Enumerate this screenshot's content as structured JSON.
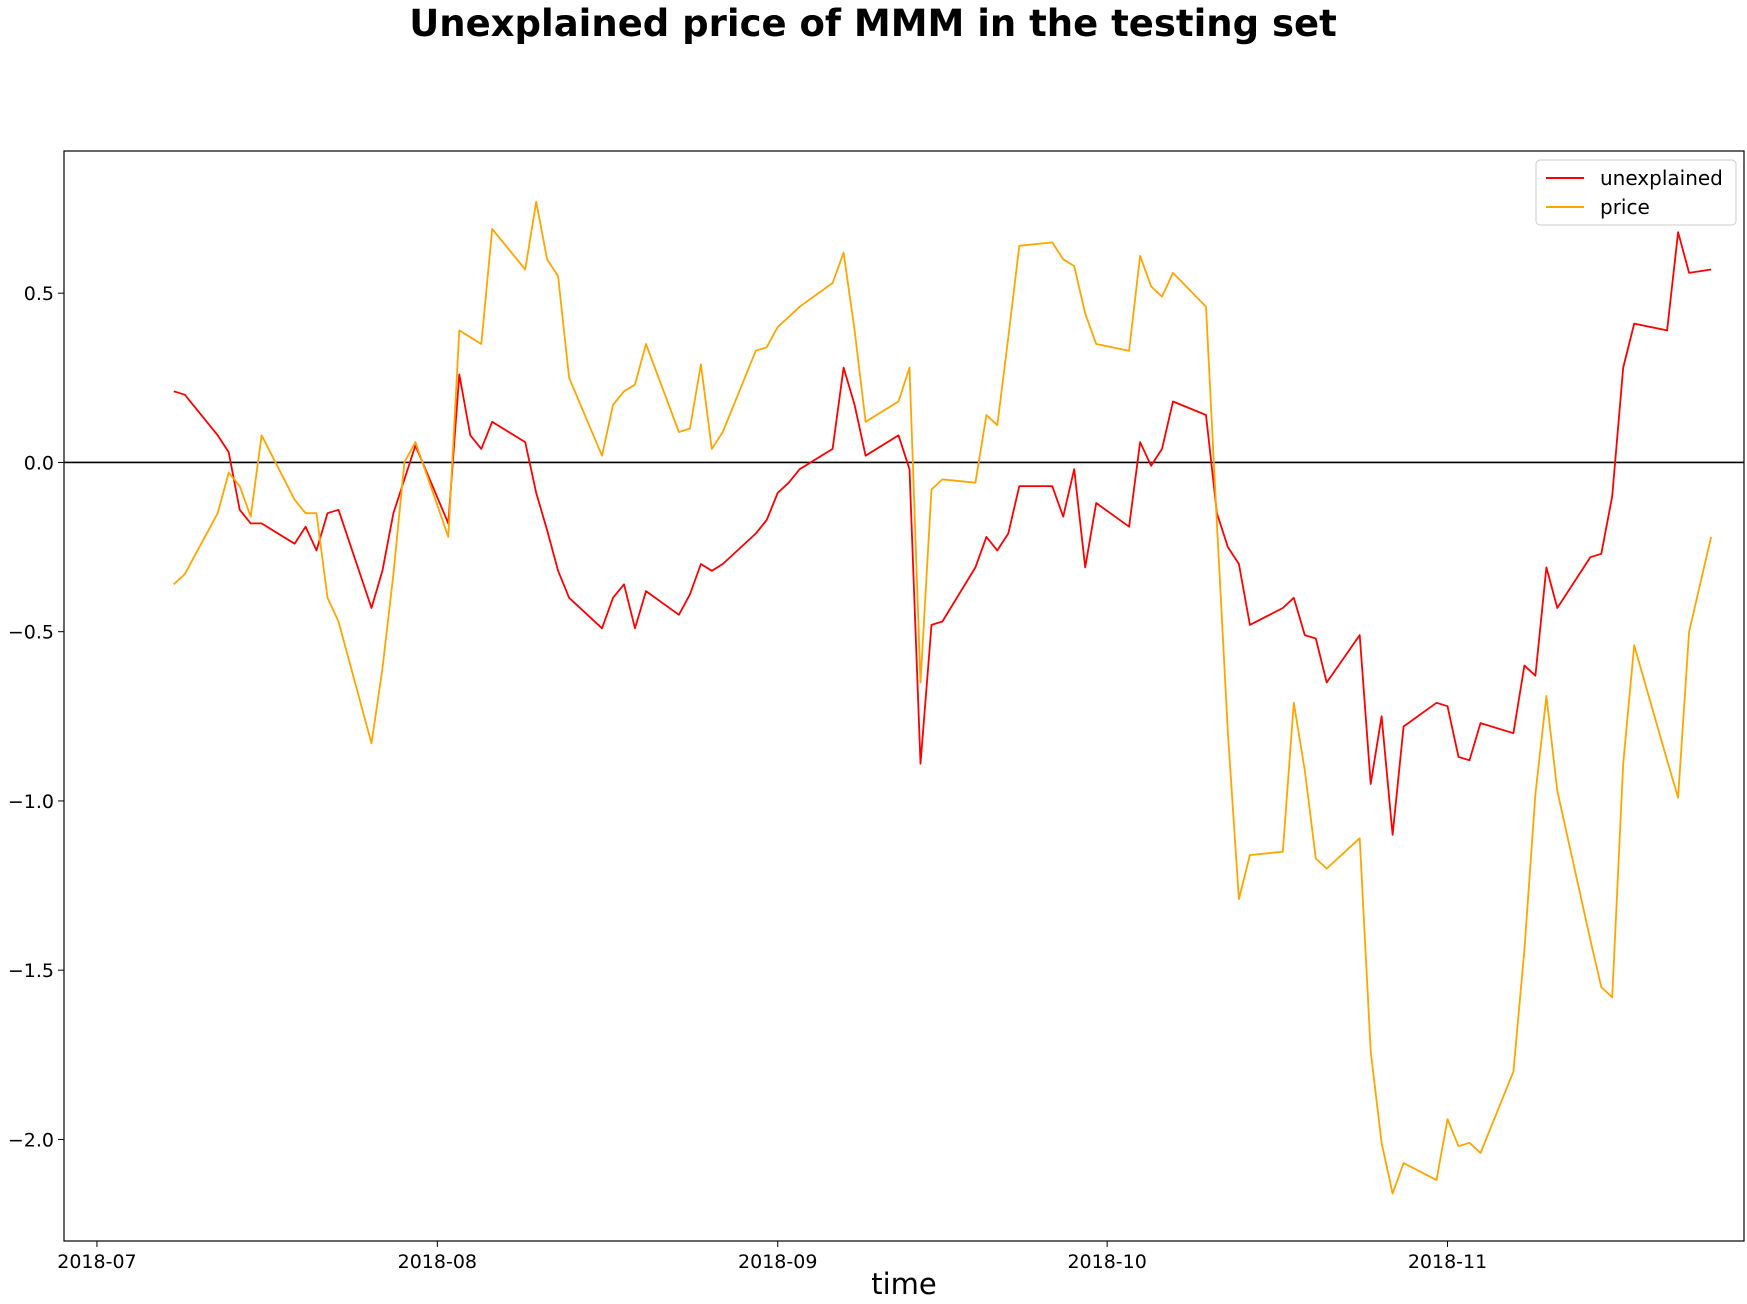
{
  "chart_data": {
    "type": "line",
    "title": "Unexplained price of MMM in the testing set",
    "xlabel": "time",
    "ylabel": "",
    "xlim": [
      "2018-06-28",
      "2018-11-28"
    ],
    "ylim": [
      -2.3,
      0.92
    ],
    "legend_position": "top-right",
    "grid": false,
    "zero_line": true,
    "x_ticks": [
      "2018-07-01",
      "2018-08-01",
      "2018-09-01",
      "2018-10-01",
      "2018-11-01"
    ],
    "x_tick_labels": [
      "2018-07",
      "2018-08",
      "2018-09",
      "2018-10",
      "2018-11"
    ],
    "y_ticks": [
      0.5,
      0.0,
      -0.5,
      -1.0,
      -1.5,
      -2.0
    ],
    "y_tick_labels": [
      "0.5",
      "0.0",
      "−0.5",
      "−1.0",
      "−1.5",
      "−2.0"
    ],
    "series": [
      {
        "name": "unexplained",
        "color": "#ff0000",
        "points": [
          [
            "2018-07-08",
            0.21
          ],
          [
            "2018-07-09",
            0.2
          ],
          [
            "2018-07-12",
            0.08
          ],
          [
            "2018-07-13",
            0.03
          ],
          [
            "2018-07-14",
            -0.14
          ],
          [
            "2018-07-15",
            -0.18
          ],
          [
            "2018-07-16",
            -0.18
          ],
          [
            "2018-07-19",
            -0.24
          ],
          [
            "2018-07-20",
            -0.19
          ],
          [
            "2018-07-21",
            -0.26
          ],
          [
            "2018-07-22",
            -0.15
          ],
          [
            "2018-07-23",
            -0.14
          ],
          [
            "2018-07-26",
            -0.43
          ],
          [
            "2018-07-27",
            -0.32
          ],
          [
            "2018-07-28",
            -0.15
          ],
          [
            "2018-07-29",
            -0.05
          ],
          [
            "2018-07-30",
            0.05
          ],
          [
            "2018-08-02",
            -0.18
          ],
          [
            "2018-08-03",
            0.26
          ],
          [
            "2018-08-04",
            0.08
          ],
          [
            "2018-08-05",
            0.04
          ],
          [
            "2018-08-06",
            0.12
          ],
          [
            "2018-08-09",
            0.06
          ],
          [
            "2018-08-10",
            -0.09
          ],
          [
            "2018-08-11",
            -0.2
          ],
          [
            "2018-08-12",
            -0.32
          ],
          [
            "2018-08-13",
            -0.4
          ],
          [
            "2018-08-16",
            -0.49
          ],
          [
            "2018-08-17",
            -0.4
          ],
          [
            "2018-08-18",
            -0.36
          ],
          [
            "2018-08-19",
            -0.49
          ],
          [
            "2018-08-20",
            -0.38
          ],
          [
            "2018-08-23",
            -0.45
          ],
          [
            "2018-08-24",
            -0.39
          ],
          [
            "2018-08-25",
            -0.3
          ],
          [
            "2018-08-26",
            -0.32
          ],
          [
            "2018-08-27",
            -0.3
          ],
          [
            "2018-08-30",
            -0.21
          ],
          [
            "2018-08-31",
            -0.17
          ],
          [
            "2018-09-01",
            -0.09
          ],
          [
            "2018-09-02",
            -0.06
          ],
          [
            "2018-09-03",
            -0.02
          ],
          [
            "2018-09-06",
            0.04
          ],
          [
            "2018-09-07",
            0.28
          ],
          [
            "2018-09-08",
            0.17
          ],
          [
            "2018-09-09",
            0.02
          ],
          [
            "2018-09-12",
            0.08
          ],
          [
            "2018-09-13",
            -0.02
          ],
          [
            "2018-09-14",
            -0.89
          ],
          [
            "2018-09-15",
            -0.48
          ],
          [
            "2018-09-16",
            -0.47
          ],
          [
            "2018-09-19",
            -0.31
          ],
          [
            "2018-09-20",
            -0.22
          ],
          [
            "2018-09-21",
            -0.26
          ],
          [
            "2018-09-22",
            -0.21
          ],
          [
            "2018-09-23",
            -0.07
          ],
          [
            "2018-09-26",
            -0.07
          ],
          [
            "2018-09-27",
            -0.16
          ],
          [
            "2018-09-28",
            -0.02
          ],
          [
            "2018-09-29",
            -0.31
          ],
          [
            "2018-09-30",
            -0.12
          ],
          [
            "2018-10-03",
            -0.19
          ],
          [
            "2018-10-04",
            0.06
          ],
          [
            "2018-10-05",
            -0.01
          ],
          [
            "2018-10-06",
            0.04
          ],
          [
            "2018-10-07",
            0.18
          ],
          [
            "2018-10-10",
            0.14
          ],
          [
            "2018-10-11",
            -0.15
          ],
          [
            "2018-10-12",
            -0.25
          ],
          [
            "2018-10-13",
            -0.3
          ],
          [
            "2018-10-14",
            -0.48
          ],
          [
            "2018-10-17",
            -0.43
          ],
          [
            "2018-10-18",
            -0.4
          ],
          [
            "2018-10-19",
            -0.51
          ],
          [
            "2018-10-20",
            -0.52
          ],
          [
            "2018-10-21",
            -0.65
          ],
          [
            "2018-10-24",
            -0.51
          ],
          [
            "2018-10-25",
            -0.95
          ],
          [
            "2018-10-26",
            -0.75
          ],
          [
            "2018-10-27",
            -1.1
          ],
          [
            "2018-10-28",
            -0.78
          ],
          [
            "2018-10-31",
            -0.71
          ],
          [
            "2018-11-01",
            -0.72
          ],
          [
            "2018-11-02",
            -0.87
          ],
          [
            "2018-11-03",
            -0.88
          ],
          [
            "2018-11-04",
            -0.77
          ],
          [
            "2018-11-07",
            -0.8
          ],
          [
            "2018-11-08",
            -0.6
          ],
          [
            "2018-11-09",
            -0.63
          ],
          [
            "2018-11-10",
            -0.31
          ],
          [
            "2018-11-11",
            -0.43
          ],
          [
            "2018-11-14",
            -0.28
          ],
          [
            "2018-11-15",
            -0.27
          ],
          [
            "2018-11-16",
            -0.1
          ],
          [
            "2018-11-17",
            0.28
          ],
          [
            "2018-11-18",
            0.41
          ],
          [
            "2018-11-21",
            0.39
          ],
          [
            "2018-11-22",
            0.68
          ],
          [
            "2018-11-23",
            0.56
          ],
          [
            "2018-11-25",
            0.57
          ]
        ]
      },
      {
        "name": "price",
        "color": "#ffa500",
        "points": [
          [
            "2018-07-08",
            -0.36
          ],
          [
            "2018-07-09",
            -0.33
          ],
          [
            "2018-07-12",
            -0.15
          ],
          [
            "2018-07-13",
            -0.03
          ],
          [
            "2018-07-14",
            -0.07
          ],
          [
            "2018-07-15",
            -0.16
          ],
          [
            "2018-07-16",
            0.08
          ],
          [
            "2018-07-19",
            -0.11
          ],
          [
            "2018-07-20",
            -0.15
          ],
          [
            "2018-07-21",
            -0.15
          ],
          [
            "2018-07-22",
            -0.4
          ],
          [
            "2018-07-23",
            -0.47
          ],
          [
            "2018-07-26",
            -0.83
          ],
          [
            "2018-07-27",
            -0.61
          ],
          [
            "2018-07-28",
            -0.33
          ],
          [
            "2018-07-29",
            0.0
          ],
          [
            "2018-07-30",
            0.06
          ],
          [
            "2018-08-02",
            -0.22
          ],
          [
            "2018-08-03",
            0.39
          ],
          [
            "2018-08-04",
            0.37
          ],
          [
            "2018-08-05",
            0.35
          ],
          [
            "2018-08-06",
            0.69
          ],
          [
            "2018-08-09",
            0.57
          ],
          [
            "2018-08-10",
            0.77
          ],
          [
            "2018-08-11",
            0.6
          ],
          [
            "2018-08-12",
            0.55
          ],
          [
            "2018-08-13",
            0.25
          ],
          [
            "2018-08-16",
            0.02
          ],
          [
            "2018-08-17",
            0.17
          ],
          [
            "2018-08-18",
            0.21
          ],
          [
            "2018-08-19",
            0.23
          ],
          [
            "2018-08-20",
            0.35
          ],
          [
            "2018-08-23",
            0.09
          ],
          [
            "2018-08-24",
            0.1
          ],
          [
            "2018-08-25",
            0.29
          ],
          [
            "2018-08-26",
            0.04
          ],
          [
            "2018-08-27",
            0.09
          ],
          [
            "2018-08-30",
            0.33
          ],
          [
            "2018-08-31",
            0.34
          ],
          [
            "2018-09-01",
            0.4
          ],
          [
            "2018-09-02",
            0.43
          ],
          [
            "2018-09-03",
            0.46
          ],
          [
            "2018-09-06",
            0.53
          ],
          [
            "2018-09-07",
            0.62
          ],
          [
            "2018-09-08",
            0.39
          ],
          [
            "2018-09-09",
            0.12
          ],
          [
            "2018-09-12",
            0.18
          ],
          [
            "2018-09-13",
            0.28
          ],
          [
            "2018-09-14",
            -0.65
          ],
          [
            "2018-09-15",
            -0.08
          ],
          [
            "2018-09-16",
            -0.05
          ],
          [
            "2018-09-19",
            -0.06
          ],
          [
            "2018-09-20",
            0.14
          ],
          [
            "2018-09-21",
            0.11
          ],
          [
            "2018-09-22",
            0.37
          ],
          [
            "2018-09-23",
            0.64
          ],
          [
            "2018-09-26",
            0.65
          ],
          [
            "2018-09-27",
            0.6
          ],
          [
            "2018-09-28",
            0.58
          ],
          [
            "2018-09-29",
            0.44
          ],
          [
            "2018-09-30",
            0.35
          ],
          [
            "2018-10-03",
            0.33
          ],
          [
            "2018-10-04",
            0.61
          ],
          [
            "2018-10-05",
            0.52
          ],
          [
            "2018-10-06",
            0.49
          ],
          [
            "2018-10-07",
            0.56
          ],
          [
            "2018-10-10",
            0.46
          ],
          [
            "2018-10-11",
            -0.18
          ],
          [
            "2018-10-12",
            -0.8
          ],
          [
            "2018-10-13",
            -1.29
          ],
          [
            "2018-10-14",
            -1.16
          ],
          [
            "2018-10-17",
            -1.15
          ],
          [
            "2018-10-18",
            -0.71
          ],
          [
            "2018-10-19",
            -0.91
          ],
          [
            "2018-10-20",
            -1.17
          ],
          [
            "2018-10-21",
            -1.2
          ],
          [
            "2018-10-24",
            -1.11
          ],
          [
            "2018-10-25",
            -1.74
          ],
          [
            "2018-10-26",
            -2.01
          ],
          [
            "2018-10-27",
            -2.16
          ],
          [
            "2018-10-28",
            -2.07
          ],
          [
            "2018-10-31",
            -2.12
          ],
          [
            "2018-11-01",
            -1.94
          ],
          [
            "2018-11-02",
            -2.02
          ],
          [
            "2018-11-03",
            -2.01
          ],
          [
            "2018-11-04",
            -2.04
          ],
          [
            "2018-11-07",
            -1.8
          ],
          [
            "2018-11-08",
            -1.44
          ],
          [
            "2018-11-09",
            -0.98
          ],
          [
            "2018-11-10",
            -0.69
          ],
          [
            "2018-11-11",
            -0.97
          ],
          [
            "2018-11-14",
            -1.41
          ],
          [
            "2018-11-15",
            -1.55
          ],
          [
            "2018-11-16",
            -1.58
          ],
          [
            "2018-11-17",
            -0.89
          ],
          [
            "2018-11-18",
            -0.54
          ],
          [
            "2018-11-21",
            -0.88
          ],
          [
            "2018-11-22",
            -0.99
          ],
          [
            "2018-11-23",
            -0.5
          ],
          [
            "2018-11-25",
            -0.22
          ]
        ]
      }
    ]
  }
}
